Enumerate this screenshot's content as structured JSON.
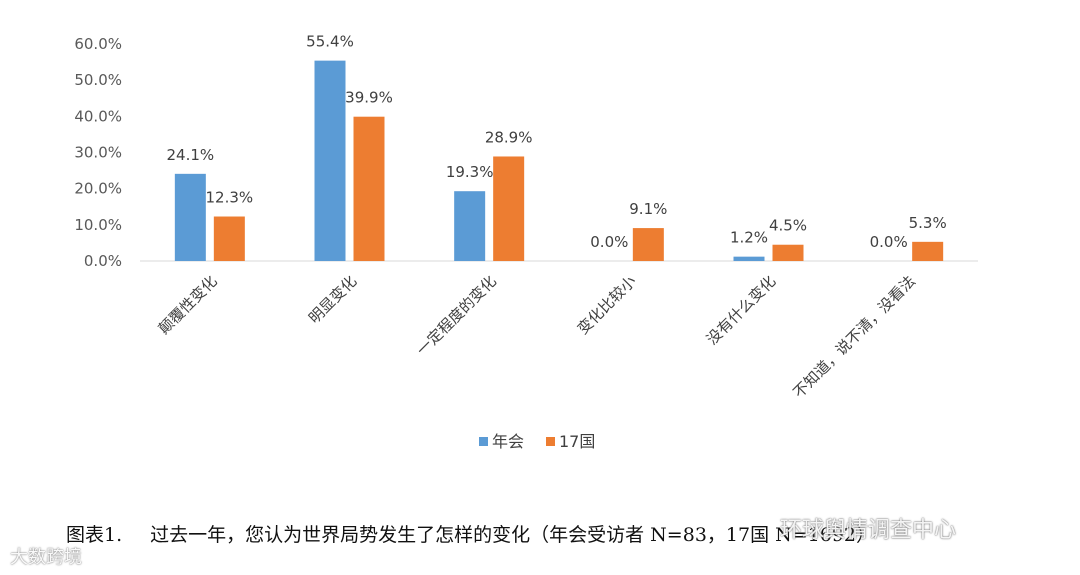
{
  "chart_data": {
    "type": "bar",
    "title": "",
    "xlabel": "",
    "ylabel": "",
    "ylim": [
      0,
      60
    ],
    "yticks": [
      "0.0%",
      "10.0%",
      "20.0%",
      "30.0%",
      "40.0%",
      "50.0%",
      "60.0%"
    ],
    "categories": [
      "颠覆性变化",
      "明显变化",
      "一定程度的变化",
      "变化比较小",
      "没有什么变化",
      "不知道，说不清，没看法"
    ],
    "series": [
      {
        "name": "年会",
        "color": "#5B9BD5",
        "values": [
          24.1,
          55.4,
          19.3,
          0.0,
          1.2,
          0.0
        ],
        "labels": [
          "24.1%",
          "55.4%",
          "19.3%",
          "0.0%",
          "1.2%",
          "0.0%"
        ]
      },
      {
        "name": "17国",
        "color": "#ED7D31",
        "values": [
          12.3,
          39.9,
          28.9,
          9.1,
          4.5,
          5.3
        ],
        "labels": [
          "12.3%",
          "39.9%",
          "28.9%",
          "9.1%",
          "4.5%",
          "5.3%"
        ]
      }
    ],
    "legend_position": "bottom",
    "grid": false
  },
  "caption": {
    "label": "图表1.",
    "text": "过去一年，您认为世界局势发生了怎样的变化（年会受访者 N=83，17国 N=1692）"
  },
  "watermarks": {
    "right": "环球舆情调查中心",
    "left": "大数跨境"
  }
}
